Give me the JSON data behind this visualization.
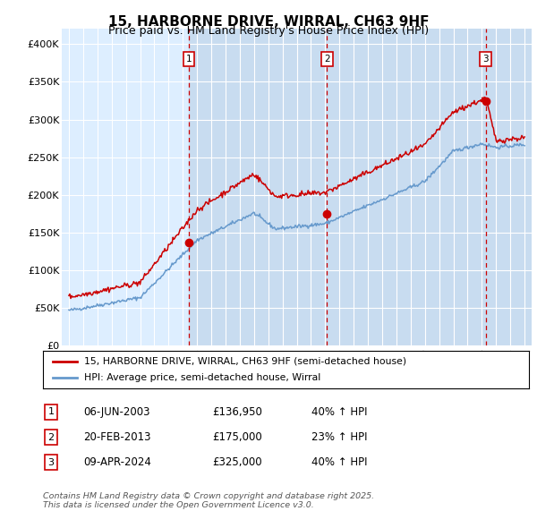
{
  "title": "15, HARBORNE DRIVE, WIRRAL, CH63 9HF",
  "subtitle": "Price paid vs. HM Land Registry's House Price Index (HPI)",
  "legend_label_red": "15, HARBORNE DRIVE, WIRRAL, CH63 9HF (semi-detached house)",
  "legend_label_blue": "HPI: Average price, semi-detached house, Wirral",
  "footer": "Contains HM Land Registry data © Crown copyright and database right 2025.\nThis data is licensed under the Open Government Licence v3.0.",
  "sales": [
    {
      "label": "1",
      "date_num": 2003.43,
      "price": 136950,
      "date_str": "06-JUN-2003",
      "pct": "40%",
      "dir": "↑"
    },
    {
      "label": "2",
      "date_num": 2013.13,
      "price": 175000,
      "date_str": "20-FEB-2013",
      "pct": "23%",
      "dir": "↑"
    },
    {
      "label": "3",
      "date_num": 2024.27,
      "price": 325000,
      "date_str": "09-APR-2024",
      "pct": "40%",
      "dir": "↑"
    }
  ],
  "table_rows": [
    [
      "1",
      "06-JUN-2003",
      "£136,950",
      "40% ↑ HPI"
    ],
    [
      "2",
      "20-FEB-2013",
      "£175,000",
      "23% ↑ HPI"
    ],
    [
      "3",
      "09-APR-2024",
      "£325,000",
      "40% ↑ HPI"
    ]
  ],
  "red_color": "#cc0000",
  "blue_color": "#6699cc",
  "background_plot": "#ddeeff",
  "background_fig": "#ffffff",
  "vline_color": "#cc0000",
  "ylim": [
    0,
    420000
  ],
  "xlim_start": 1994.5,
  "xlim_end": 2027.5,
  "yticks": [
    0,
    50000,
    100000,
    150000,
    200000,
    250000,
    300000,
    350000,
    400000
  ],
  "ytick_labels": [
    "£0",
    "£50K",
    "£100K",
    "£150K",
    "£200K",
    "£250K",
    "£300K",
    "£350K",
    "£400K"
  ],
  "xticks": [
    1995,
    1996,
    1997,
    1998,
    1999,
    2000,
    2001,
    2002,
    2003,
    2004,
    2005,
    2006,
    2007,
    2008,
    2009,
    2010,
    2011,
    2012,
    2013,
    2014,
    2015,
    2016,
    2017,
    2018,
    2019,
    2020,
    2021,
    2022,
    2023,
    2024,
    2025,
    2026,
    2027
  ]
}
